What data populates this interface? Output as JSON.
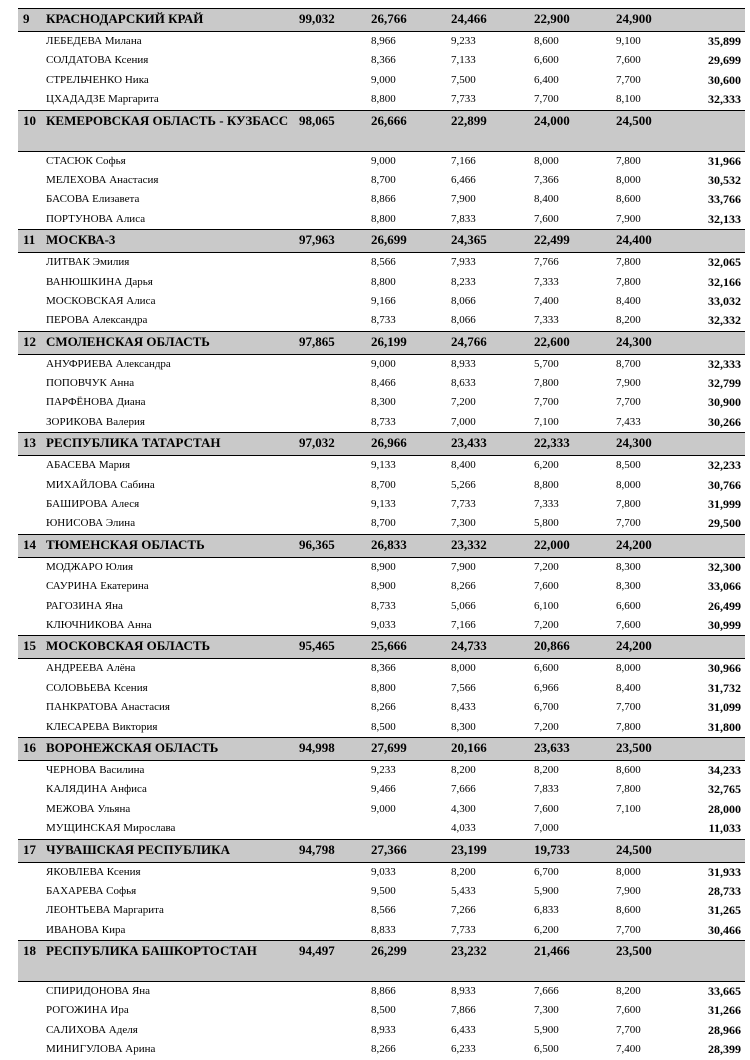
{
  "teams": [
    {
      "rank": "9",
      "name": "КРАСНОДАРСКИЙ КРАЙ",
      "total": "99,032",
      "scores": [
        "26,766",
        "24,466",
        "22,900",
        "24,900"
      ],
      "athletes": [
        {
          "name": "ЛЕБЕДЕВА Милана",
          "scores": [
            "8,966",
            "9,233",
            "8,600",
            "9,100"
          ],
          "total": "35,899"
        },
        {
          "name": "СОЛДАТОВА Ксения",
          "scores": [
            "8,366",
            "7,133",
            "6,600",
            "7,600"
          ],
          "total": "29,699"
        },
        {
          "name": "СТРЕЛЬЧЕНКО Ника",
          "scores": [
            "9,000",
            "7,500",
            "6,400",
            "7,700"
          ],
          "total": "30,600"
        },
        {
          "name": "ЦХАДАДЗЕ Маргарита",
          "scores": [
            "8,800",
            "7,733",
            "7,700",
            "8,100"
          ],
          "total": "32,333"
        }
      ]
    },
    {
      "rank": "10",
      "name": "КЕМЕРОВСКАЯ ОБЛАСТЬ - КУЗБАСС",
      "total": "98,065",
      "scores": [
        "26,666",
        "22,899",
        "24,000",
        "24,500"
      ],
      "athletes": [
        {
          "name": "СТАСЮК Софья",
          "scores": [
            "9,000",
            "7,166",
            "8,000",
            "7,800"
          ],
          "total": "31,966"
        },
        {
          "name": "МЕЛЕХОВА Анастасия",
          "scores": [
            "8,700",
            "6,466",
            "7,366",
            "8,000"
          ],
          "total": "30,532"
        },
        {
          "name": "БАСОВА Елизавета",
          "scores": [
            "8,866",
            "7,900",
            "8,400",
            "8,600"
          ],
          "total": "33,766"
        },
        {
          "name": "ПОРТУНОВА Алиса",
          "scores": [
            "8,800",
            "7,833",
            "7,600",
            "7,900"
          ],
          "total": "32,133"
        }
      ]
    },
    {
      "rank": "11",
      "name": "МОСКВА-3",
      "total": "97,963",
      "scores": [
        "26,699",
        "24,365",
        "22,499",
        "24,400"
      ],
      "athletes": [
        {
          "name": "ЛИТВАК Эмилия",
          "scores": [
            "8,566",
            "7,933",
            "7,766",
            "7,800"
          ],
          "total": "32,065"
        },
        {
          "name": "ВАНЮШКИНА Дарья",
          "scores": [
            "8,800",
            "8,233",
            "7,333",
            "7,800"
          ],
          "total": "32,166"
        },
        {
          "name": "МОСКОВСКАЯ Алиса",
          "scores": [
            "9,166",
            "8,066",
            "7,400",
            "8,400"
          ],
          "total": "33,032"
        },
        {
          "name": "ПЕРОВА Александра",
          "scores": [
            "8,733",
            "8,066",
            "7,333",
            "8,200"
          ],
          "total": "32,332"
        }
      ]
    },
    {
      "rank": "12",
      "name": "СМОЛЕНСКАЯ ОБЛАСТЬ",
      "total": "97,865",
      "scores": [
        "26,199",
        "24,766",
        "22,600",
        "24,300"
      ],
      "athletes": [
        {
          "name": "АНУФРИЕВА Александра",
          "scores": [
            "9,000",
            "8,933",
            "5,700",
            "8,700"
          ],
          "total": "32,333"
        },
        {
          "name": "ПОПОВЧУК Анна",
          "scores": [
            "8,466",
            "8,633",
            "7,800",
            "7,900"
          ],
          "total": "32,799"
        },
        {
          "name": "ПАРФЁНОВА Диана",
          "scores": [
            "8,300",
            "7,200",
            "7,700",
            "7,700"
          ],
          "total": "30,900"
        },
        {
          "name": "ЗОРИКОВА Валерия",
          "scores": [
            "8,733",
            "7,000",
            "7,100",
            "7,433"
          ],
          "total": "30,266"
        }
      ]
    },
    {
      "rank": "13",
      "name": "РЕСПУБЛИКА ТАТАРСТАН",
      "total": "97,032",
      "scores": [
        "26,966",
        "23,433",
        "22,333",
        "24,300"
      ],
      "athletes": [
        {
          "name": "АБАСЕВА Мария",
          "scores": [
            "9,133",
            "8,400",
            "6,200",
            "8,500"
          ],
          "total": "32,233"
        },
        {
          "name": "МИХАЙЛОВА Сабина",
          "scores": [
            "8,700",
            "5,266",
            "8,800",
            "8,000"
          ],
          "total": "30,766"
        },
        {
          "name": "БАШИРОВА Алеся",
          "scores": [
            "9,133",
            "7,733",
            "7,333",
            "7,800"
          ],
          "total": "31,999"
        },
        {
          "name": "ЮНИСОВА Элина",
          "scores": [
            "8,700",
            "7,300",
            "5,800",
            "7,700"
          ],
          "total": "29,500"
        }
      ]
    },
    {
      "rank": "14",
      "name": "ТЮМЕНСКАЯ ОБЛАСТЬ",
      "total": "96,365",
      "scores": [
        "26,833",
        "23,332",
        "22,000",
        "24,200"
      ],
      "athletes": [
        {
          "name": "МОДЖАРО Юлия",
          "scores": [
            "8,900",
            "7,900",
            "7,200",
            "8,300"
          ],
          "total": "32,300"
        },
        {
          "name": "САУРИНА Екатерина",
          "scores": [
            "8,900",
            "8,266",
            "7,600",
            "8,300"
          ],
          "total": "33,066"
        },
        {
          "name": "РАГОЗИНА Яна",
          "scores": [
            "8,733",
            "5,066",
            "6,100",
            "6,600"
          ],
          "total": "26,499"
        },
        {
          "name": "КЛЮЧНИКОВА Анна",
          "scores": [
            "9,033",
            "7,166",
            "7,200",
            "7,600"
          ],
          "total": "30,999"
        }
      ]
    },
    {
      "rank": "15",
      "name": "МОСКОВСКАЯ ОБЛАСТЬ",
      "total": "95,465",
      "scores": [
        "25,666",
        "24,733",
        "20,866",
        "24,200"
      ],
      "athletes": [
        {
          "name": "АНДРЕЕВА Алёна",
          "scores": [
            "8,366",
            "8,000",
            "6,600",
            "8,000"
          ],
          "total": "30,966"
        },
        {
          "name": "СОЛОВЬЕВА Ксения",
          "scores": [
            "8,800",
            "7,566",
            "6,966",
            "8,400"
          ],
          "total": "31,732"
        },
        {
          "name": "ПАНКРАТОВА Анастасия",
          "scores": [
            "8,266",
            "8,433",
            "6,700",
            "7,700"
          ],
          "total": "31,099"
        },
        {
          "name": "КЛЕСАРЕВА Виктория",
          "scores": [
            "8,500",
            "8,300",
            "7,200",
            "7,800"
          ],
          "total": "31,800"
        }
      ]
    },
    {
      "rank": "16",
      "name": "ВОРОНЕЖСКАЯ ОБЛАСТЬ",
      "total": "94,998",
      "scores": [
        "27,699",
        "20,166",
        "23,633",
        "23,500"
      ],
      "athletes": [
        {
          "name": "ЧЕРНОВА Василина",
          "scores": [
            "9,233",
            "8,200",
            "8,200",
            "8,600"
          ],
          "total": "34,233"
        },
        {
          "name": "КАЛЯДИНА Анфиса",
          "scores": [
            "9,466",
            "7,666",
            "7,833",
            "7,800"
          ],
          "total": "32,765"
        },
        {
          "name": "МЕЖОВА Ульяна",
          "scores": [
            "9,000",
            "4,300",
            "7,600",
            "7,100"
          ],
          "total": "28,000"
        },
        {
          "name": "МУЩИНСКАЯ Мирослава",
          "scores": [
            null,
            "4,033",
            "7,000",
            null
          ],
          "total": "11,033"
        }
      ]
    },
    {
      "rank": "17",
      "name": "ЧУВАШСКАЯ РЕСПУБЛИКА",
      "total": "94,798",
      "scores": [
        "27,366",
        "23,199",
        "19,733",
        "24,500"
      ],
      "athletes": [
        {
          "name": "ЯКОВЛЕВА Ксения",
          "scores": [
            "9,033",
            "8,200",
            "6,700",
            "8,000"
          ],
          "total": "31,933"
        },
        {
          "name": "БАХАРЕВА Софья",
          "scores": [
            "9,500",
            "5,433",
            "5,900",
            "7,900"
          ],
          "total": "28,733"
        },
        {
          "name": "ЛЕОНТЬЕВА Маргарита",
          "scores": [
            "8,566",
            "7,266",
            "6,833",
            "8,600"
          ],
          "total": "31,265"
        },
        {
          "name": "ИВАНОВА Кира",
          "scores": [
            "8,833",
            "7,733",
            "6,200",
            "7,700"
          ],
          "total": "30,466"
        }
      ]
    },
    {
      "rank": "18",
      "name": "РЕСПУБЛИКА БАШКОРТОСТАН",
      "total": "94,497",
      "scores": [
        "26,299",
        "23,232",
        "21,466",
        "23,500"
      ],
      "athletes": [
        {
          "name": "СПИРИДОНОВА Яна",
          "scores": [
            "8,866",
            "8,933",
            "7,666",
            "8,200"
          ],
          "total": "33,665"
        },
        {
          "name": "РОГОЖИНА Ира",
          "scores": [
            "8,500",
            "7,866",
            "7,300",
            "7,600"
          ],
          "total": "31,266"
        },
        {
          "name": "САЛИХОВА Аделя",
          "scores": [
            "8,933",
            "6,433",
            "5,900",
            "7,700"
          ],
          "total": "28,966"
        },
        {
          "name": "МИНИГУЛОВА Арина",
          "scores": [
            "8,266",
            "6,233",
            "6,500",
            "7,400"
          ],
          "total": "28,399"
        }
      ]
    }
  ]
}
